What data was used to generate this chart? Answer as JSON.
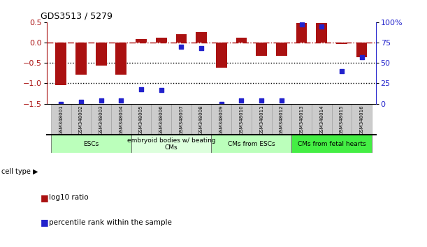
{
  "title": "GDS3513 / 5279",
  "samples": [
    "GSM348001",
    "GSM348002",
    "GSM348003",
    "GSM348004",
    "GSM348005",
    "GSM348006",
    "GSM348007",
    "GSM348008",
    "GSM348009",
    "GSM348010",
    "GSM348011",
    "GSM348012",
    "GSM348013",
    "GSM348014",
    "GSM348015",
    "GSM348016"
  ],
  "log10_ratio": [
    -1.05,
    -0.78,
    -0.56,
    -0.78,
    0.09,
    0.12,
    0.2,
    0.25,
    -0.62,
    0.12,
    -0.32,
    -0.32,
    0.48,
    0.48,
    -0.04,
    -0.35
  ],
  "percentile_rank": [
    0,
    2,
    4,
    4,
    18,
    17,
    70,
    68,
    0,
    4,
    4,
    4,
    97,
    95,
    40,
    57
  ],
  "ylim_left": [
    -1.5,
    0.5
  ],
  "ylim_right": [
    0,
    100
  ],
  "bar_color": "#aa1111",
  "dot_color": "#2222cc",
  "groups": [
    {
      "label": "ESCs",
      "start": 0,
      "end": 3,
      "color": "#bbffbb"
    },
    {
      "label": "embryoid bodies w/ beating\nCMs",
      "start": 4,
      "end": 7,
      "color": "#ddffdd"
    },
    {
      "label": "CMs from ESCs",
      "start": 8,
      "end": 11,
      "color": "#bbffbb"
    },
    {
      "label": "CMs from fetal hearts",
      "start": 12,
      "end": 15,
      "color": "#44ee44"
    }
  ],
  "left_yticks": [
    0.5,
    0,
    -0.5,
    -1.0,
    -1.5
  ],
  "right_yticks": [
    100,
    75,
    50,
    25,
    0
  ],
  "bar_width": 0.55,
  "legend_items": [
    {
      "color": "#aa1111",
      "label": "log10 ratio"
    },
    {
      "color": "#2222cc",
      "label": "percentile rank within the sample"
    }
  ],
  "cell_type_label": "cell type",
  "background": "#ffffff"
}
